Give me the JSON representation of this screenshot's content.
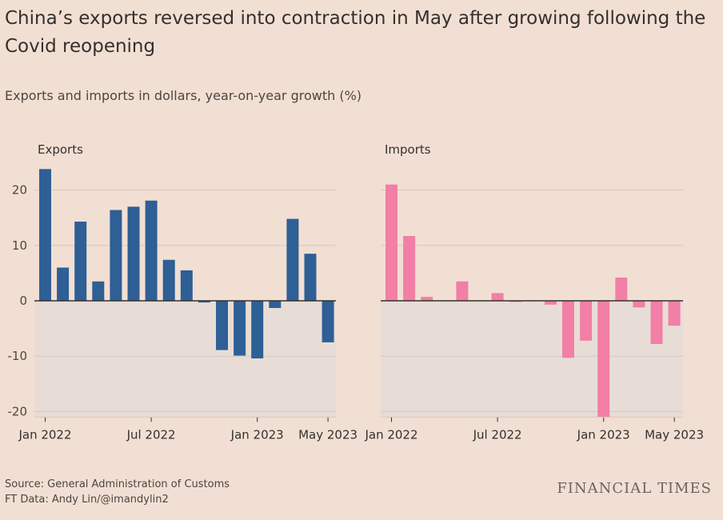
{
  "title": "China’s exports reversed into contraction in May after growing following the Covid reopening",
  "subtitle": "Exports and imports in dollars, year-on-year growth (%)",
  "source_line": "Source: General Administration of Customs",
  "credit_line": "FT Data: Andy Lin/@imandylin2",
  "brand": "FINANCIAL TIMES",
  "colors": {
    "exports": "#2e5f95",
    "imports": "#f17fa6",
    "negative_band": "#e8ddd6",
    "gridline": "#d6c7bd",
    "zero_line": "#33302e"
  },
  "chart_data": [
    {
      "type": "bar",
      "title": "Exports",
      "categories": [
        "Jan 2022",
        "Feb 2022",
        "Mar 2022",
        "Apr 2022",
        "May 2022",
        "Jun 2022",
        "Jul 2022",
        "Aug 2022",
        "Sep 2022",
        "Oct 2022",
        "Nov 2022",
        "Dec 2022",
        "Jan 2023",
        "Feb 2023",
        "Mar 2023",
        "Apr 2023",
        "May 2023"
      ],
      "values": [
        23.8,
        6.0,
        14.3,
        3.5,
        16.4,
        17.0,
        18.1,
        7.4,
        5.5,
        -0.3,
        -8.9,
        -9.9,
        -10.4,
        -1.3,
        14.8,
        8.5,
        -7.5
      ],
      "ylim": [
        -21,
        24
      ],
      "yticks": [
        20,
        10,
        0,
        -10,
        -20
      ],
      "xticks": [
        {
          "index": 0,
          "label": "Jan 2022"
        },
        {
          "index": 6,
          "label": "Jul 2022"
        },
        {
          "index": 12,
          "label": "Jan 2023"
        },
        {
          "index": 16,
          "label": "May 2023"
        }
      ]
    },
    {
      "type": "bar",
      "title": "Imports",
      "categories": [
        "Jan 2022",
        "Feb 2022",
        "Mar 2022",
        "Apr 2022",
        "May 2022",
        "Jun 2022",
        "Jul 2022",
        "Aug 2022",
        "Sep 2022",
        "Oct 2022",
        "Nov 2022",
        "Dec 2022",
        "Jan 2023",
        "Feb 2023",
        "Mar 2023",
        "Apr 2023",
        "May 2023"
      ],
      "values": [
        21.0,
        11.7,
        0.7,
        0.0,
        3.5,
        0.0,
        1.4,
        -0.2,
        0.0,
        -0.7,
        -10.3,
        -7.2,
        -21.0,
        4.2,
        -1.2,
        -7.8,
        -4.5
      ],
      "ylim": [
        -21,
        24
      ],
      "yticks": [
        20,
        10,
        0,
        -10,
        -20
      ],
      "xticks": [
        {
          "index": 0,
          "label": "Jan 2022"
        },
        {
          "index": 6,
          "label": "Jul 2022"
        },
        {
          "index": 12,
          "label": "Jan 2023"
        },
        {
          "index": 16,
          "label": "May 2023"
        }
      ]
    }
  ]
}
